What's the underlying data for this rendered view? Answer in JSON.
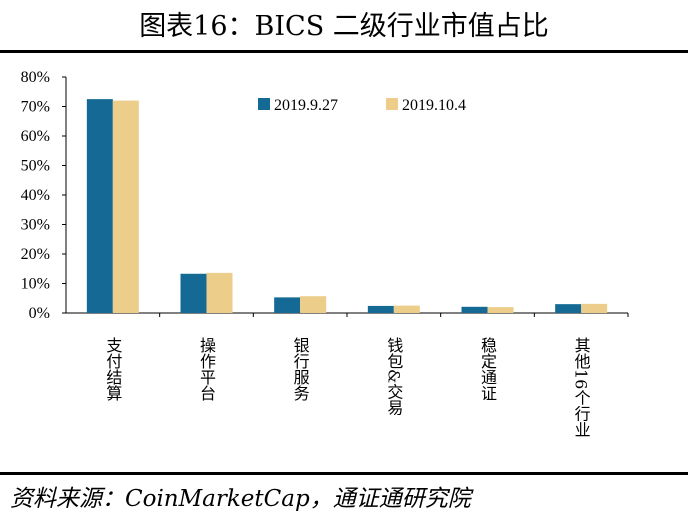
{
  "title": "图表16：BICS 二级行业市值占比",
  "source": "资料来源：CoinMarketCap，通证通研究院",
  "colors": {
    "series1": "#156a95",
    "series2": "#edcd8a"
  },
  "chart_data": {
    "type": "bar",
    "categories": [
      "支付结算",
      "操作平台",
      "银行服务",
      "钱包&交易",
      "稳定通证",
      "其他16个行业"
    ],
    "series": [
      {
        "name": "2019.9.27",
        "values": [
          72.5,
          13.3,
          5.3,
          2.4,
          2.1,
          3.0
        ]
      },
      {
        "name": "2019.10.4",
        "values": [
          72.0,
          13.6,
          5.7,
          2.5,
          2.0,
          3.1
        ]
      }
    ],
    "yticks": [
      "0%",
      "10%",
      "20%",
      "30%",
      "40%",
      "50%",
      "60%",
      "70%",
      "80%"
    ],
    "ylim": [
      0,
      80
    ],
    "legend": "top-center"
  }
}
